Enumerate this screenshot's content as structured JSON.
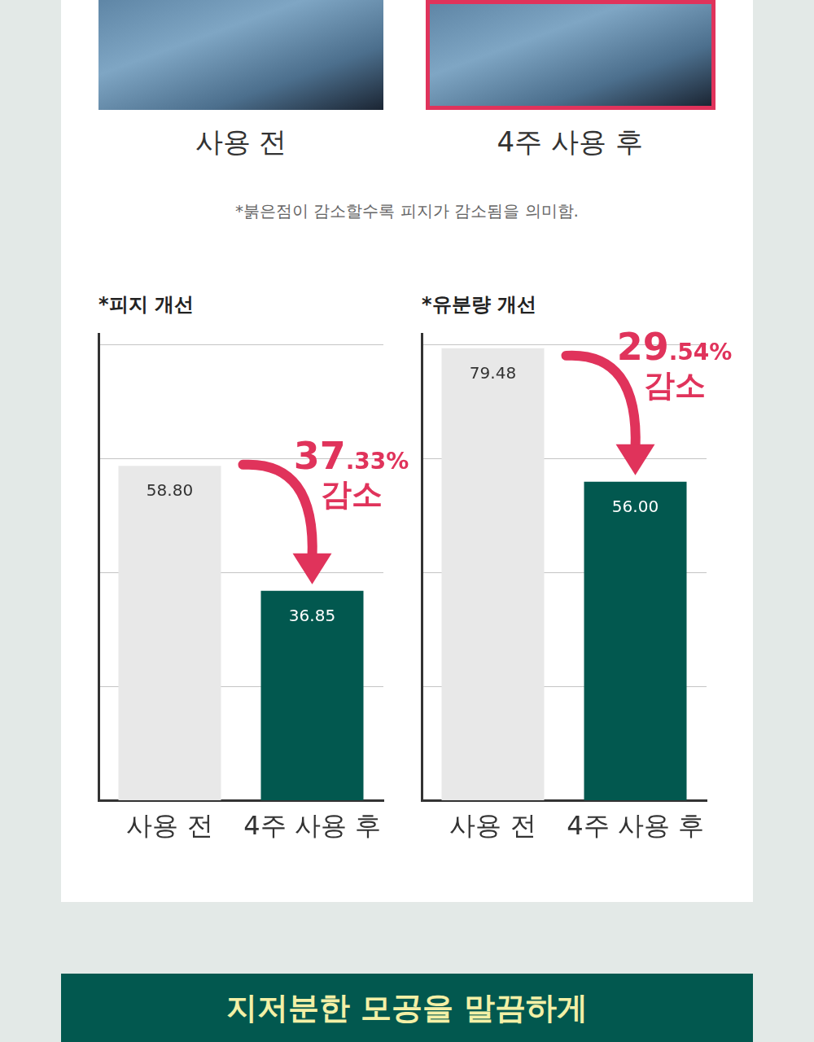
{
  "photo_labels": [
    "사용 전",
    "4주 사용 후"
  ],
  "note": "*붉은점이 감소할수록 피지가 감소됨을 의미함.",
  "chart_data": [
    {
      "type": "bar",
      "title": "*피지 개선",
      "categories": [
        "사용 전",
        "4주 사용 후"
      ],
      "values": [
        58.8,
        36.85
      ],
      "value_labels": [
        "58.80",
        "36.85"
      ],
      "colors": [
        "#e8e8e8",
        "#02584f"
      ],
      "ylim": [
        0,
        82
      ],
      "yticks": [
        0,
        20,
        40,
        60,
        80
      ],
      "grid": true,
      "tick_labels": "x",
      "data_labels": true,
      "annotation": "37.33% 감소"
    },
    {
      "type": "bar",
      "title": "*유분량 개선",
      "categories": [
        "사용 전",
        "4주 사용 후"
      ],
      "values": [
        79.48,
        56
      ],
      "value_labels": [
        "79.48",
        "56.00"
      ],
      "colors": [
        "#e8e8e8",
        "#02584f"
      ],
      "ylim": [
        0,
        82
      ],
      "yticks": [
        0,
        20,
        40,
        60,
        80
      ],
      "grid": true,
      "tick_labels": "x",
      "data_labels": true,
      "annotation": "29.54% 감소"
    }
  ],
  "banner": "지저분한 모공을 말끔하게"
}
